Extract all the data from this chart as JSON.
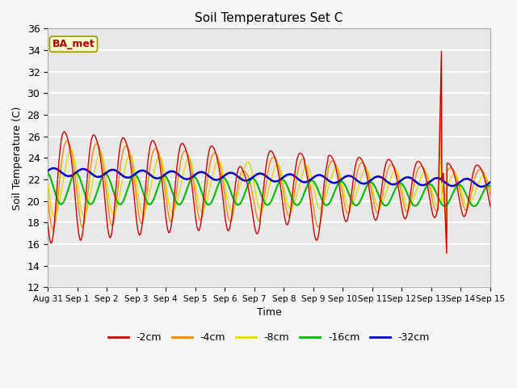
{
  "title": "Soil Temperatures Set C",
  "xlabel": "Time",
  "ylabel": "Soil Temperature (C)",
  "ylim": [
    12,
    36
  ],
  "yticks": [
    12,
    14,
    16,
    18,
    20,
    22,
    24,
    26,
    28,
    30,
    32,
    34,
    36
  ],
  "colors": {
    "-2cm": "#cc0000",
    "-4cm": "#ff8800",
    "-8cm": "#dddd00",
    "-16cm": "#00bb00",
    "-32cm": "#0000cc"
  },
  "legend_labels": [
    "-2cm",
    "-4cm",
    "-8cm",
    "-16cm",
    "-32cm"
  ],
  "annotation_text": "BA_met",
  "annotation_color": "#aa0000",
  "annotation_bg": "#ffffcc",
  "background_color": "#e8e8e8",
  "grid_color": "#ffffff",
  "xticklabels": [
    "Aug 31",
    "Sep 1",
    "Sep 2",
    "Sep 3",
    "Sep 4",
    "Sep 5",
    "Sep 6",
    "Sep 7",
    "Sep 8",
    "Sep 9",
    "Sep 10",
    "Sep 11",
    "Sep 12",
    "Sep 13",
    "Sep 14",
    "Sep 15"
  ],
  "num_days": 15,
  "points_per_day": 96
}
